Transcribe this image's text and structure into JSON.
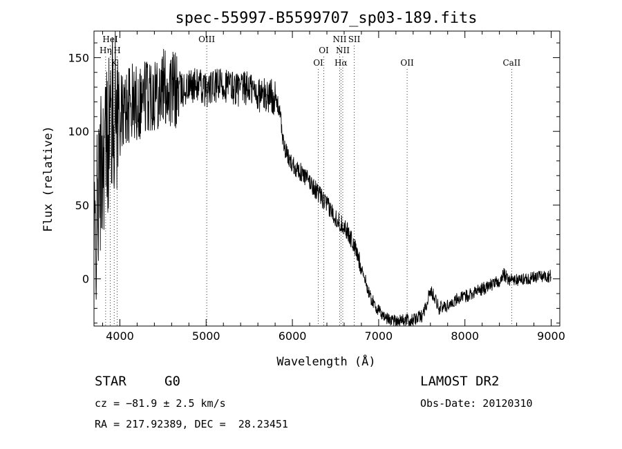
{
  "chart_data": {
    "type": "line",
    "title": "spec-55997-B5599707_sp03-189.fits",
    "xlabel": "Wavelength (Å)",
    "ylabel": "Flux (relative)",
    "xlim": [
      3700,
      9100
    ],
    "ylim": [
      -32,
      168
    ],
    "x_ticks": [
      4000,
      5000,
      6000,
      7000,
      8000,
      9000
    ],
    "y_ticks": [
      0,
      50,
      100,
      150
    ],
    "grid": false,
    "series": [
      {
        "name": "spectrum",
        "x": [
          3700,
          3750,
          3800,
          3850,
          3900,
          3950,
          4000,
          4100,
          4200,
          4300,
          4400,
          4500,
          4600,
          4700,
          4800,
          4900,
          5000,
          5100,
          5200,
          5300,
          5400,
          5500,
          5600,
          5700,
          5750,
          5800,
          5850,
          5900,
          5950,
          6000,
          6100,
          6200,
          6300,
          6400,
          6500,
          6550,
          6600,
          6700,
          6800,
          6900,
          7000,
          7100,
          7200,
          7300,
          7400,
          7500,
          7550,
          7600,
          7650,
          7700,
          7800,
          7900,
          8000,
          8100,
          8200,
          8300,
          8400,
          8450,
          8500,
          8600,
          8700,
          8800,
          8900,
          9000
        ],
        "y": [
          15,
          55,
          85,
          95,
          110,
          115,
          110,
          118,
          120,
          125,
          128,
          130,
          128,
          127,
          130,
          132,
          128,
          130,
          132,
          130,
          128,
          130,
          125,
          124,
          125,
          122,
          115,
          90,
          82,
          78,
          72,
          66,
          58,
          50,
          42,
          38,
          36,
          25,
          8,
          -12,
          -22,
          -27,
          -28,
          -28,
          -28,
          -25,
          -18,
          -8,
          -12,
          -20,
          -18,
          -14,
          -12,
          -9,
          -7,
          -4,
          -2,
          3,
          0,
          -1,
          0,
          1,
          2,
          2
        ]
      }
    ],
    "line_markers": [
      {
        "label": "HeI",
        "wavelength": 3889,
        "row": 0
      },
      {
        "label": "Hη",
        "wavelength": 3835,
        "row": 1
      },
      {
        "label": "H",
        "wavelength": 3968,
        "row": 1
      },
      {
        "label": "K",
        "wavelength": 3934,
        "row": 2
      },
      {
        "label": "OIII",
        "wavelength": 5007,
        "row": 0
      },
      {
        "label": "OI",
        "wavelength": 6364,
        "row": 1
      },
      {
        "label": "OI",
        "wavelength": 6300,
        "row": 2
      },
      {
        "label": "NII",
        "wavelength": 6548,
        "row": 0
      },
      {
        "label": "SII",
        "wavelength": 6717,
        "row": 0
      },
      {
        "label": "NII",
        "wavelength": 6584,
        "row": 1
      },
      {
        "label": "Hα",
        "wavelength": 6563,
        "row": 2
      },
      {
        "label": "OII",
        "wavelength": 7330,
        "row": 2
      },
      {
        "label": "CaII",
        "wavelength": 8542,
        "row": 2
      }
    ]
  },
  "info": {
    "class": "STAR",
    "subclass": "G0",
    "survey": "LAMOST DR2",
    "cz": "cz = −81.9 ± 2.5 km/s",
    "obs_date": "Obs-Date: 20120310",
    "radec": "RA = 217.92389, DEC =  28.23451"
  }
}
